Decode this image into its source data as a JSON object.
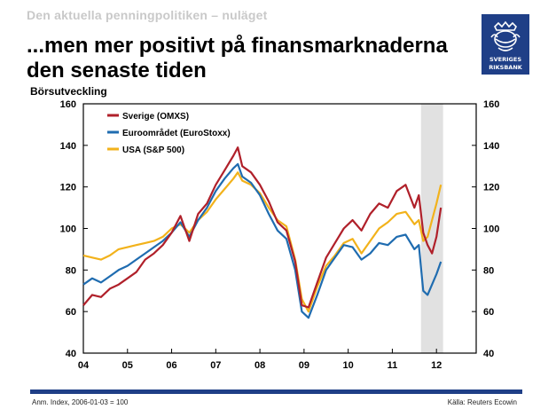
{
  "slide": {
    "kicker": "Den aktuella penningpolitiken – nuläget",
    "title": "...men mer positivt på finansmarknaderna den senaste tiden",
    "note": "Anm. Index, 2006-01-03 = 100",
    "source": "Källa: Reuters Ecowin",
    "logo": {
      "line1": "SVERIGES",
      "line2": "RIKSBANK",
      "color": "#1f3f87"
    }
  },
  "chart_data": {
    "type": "line",
    "title": "",
    "ylabel": "Börsutveckling",
    "xlabel": "",
    "x_ticks": [
      "04",
      "05",
      "06",
      "07",
      "08",
      "09",
      "10",
      "11",
      "12"
    ],
    "ylim": [
      40,
      160
    ],
    "y_ticks": [
      40,
      60,
      80,
      100,
      120,
      140,
      160
    ],
    "right_axis_mirror": true,
    "legend_position": "top-left",
    "shaded_region": {
      "from": 11.65,
      "to": 12.15,
      "color": "#d9d9d9"
    },
    "series": [
      {
        "name": "Sverige (OMXS)",
        "color": "#b0202a",
        "x": [
          4.0,
          4.2,
          4.4,
          4.6,
          4.8,
          5.0,
          5.2,
          5.4,
          5.6,
          5.8,
          6.0,
          6.2,
          6.4,
          6.6,
          6.8,
          7.0,
          7.2,
          7.4,
          7.5,
          7.6,
          7.8,
          8.0,
          8.2,
          8.4,
          8.6,
          8.8,
          8.95,
          9.1,
          9.3,
          9.5,
          9.7,
          9.9,
          10.1,
          10.3,
          10.5,
          10.7,
          10.9,
          11.1,
          11.3,
          11.5,
          11.6,
          11.7,
          11.8,
          11.9,
          12.0,
          12.1
        ],
        "y": [
          63,
          68,
          67,
          71,
          73,
          76,
          79,
          85,
          88,
          92,
          98,
          106,
          94,
          107,
          112,
          121,
          128,
          135,
          139,
          130,
          127,
          121,
          113,
          103,
          99,
          84,
          63,
          62,
          74,
          86,
          93,
          100,
          104,
          99,
          107,
          112,
          110,
          118,
          121,
          110,
          116,
          98,
          92,
          88,
          96,
          110
        ]
      },
      {
        "name": "Euroområdet (EuroStoxx)",
        "color": "#1f6cb0",
        "x": [
          4.0,
          4.2,
          4.4,
          4.6,
          4.8,
          5.0,
          5.2,
          5.4,
          5.6,
          5.8,
          6.0,
          6.2,
          6.4,
          6.6,
          6.8,
          7.0,
          7.2,
          7.4,
          7.5,
          7.6,
          7.8,
          8.0,
          8.2,
          8.4,
          8.6,
          8.8,
          8.95,
          9.1,
          9.3,
          9.5,
          9.7,
          9.9,
          10.1,
          10.3,
          10.5,
          10.7,
          10.9,
          11.1,
          11.3,
          11.5,
          11.6,
          11.7,
          11.8,
          11.9,
          12.0,
          12.1
        ],
        "y": [
          73,
          76,
          74,
          77,
          80,
          82,
          85,
          88,
          91,
          94,
          98,
          103,
          96,
          104,
          110,
          118,
          124,
          129,
          131,
          125,
          122,
          116,
          107,
          99,
          95,
          80,
          60,
          57,
          68,
          80,
          86,
          92,
          91,
          85,
          88,
          93,
          92,
          96,
          97,
          90,
          92,
          70,
          68,
          73,
          78,
          84
        ]
      },
      {
        "name": "USA (S&P 500)",
        "color": "#f2b21b",
        "x": [
          4.0,
          4.2,
          4.4,
          4.6,
          4.8,
          5.0,
          5.2,
          5.4,
          5.6,
          5.8,
          6.0,
          6.2,
          6.4,
          6.6,
          6.8,
          7.0,
          7.2,
          7.4,
          7.5,
          7.6,
          7.8,
          8.0,
          8.2,
          8.4,
          8.6,
          8.8,
          8.95,
          9.1,
          9.3,
          9.5,
          9.7,
          9.9,
          10.1,
          10.3,
          10.5,
          10.7,
          10.9,
          11.1,
          11.3,
          11.5,
          11.6,
          11.7,
          11.8,
          11.9,
          12.0,
          12.1
        ],
        "y": [
          87,
          86,
          85,
          87,
          90,
          91,
          92,
          93,
          94,
          96,
          100,
          102,
          98,
          104,
          108,
          114,
          119,
          124,
          127,
          123,
          121,
          117,
          110,
          104,
          101,
          85,
          66,
          60,
          72,
          82,
          87,
          93,
          95,
          88,
          94,
          100,
          103,
          107,
          108,
          102,
          104,
          94,
          96,
          104,
          112,
          121
        ]
      }
    ]
  }
}
